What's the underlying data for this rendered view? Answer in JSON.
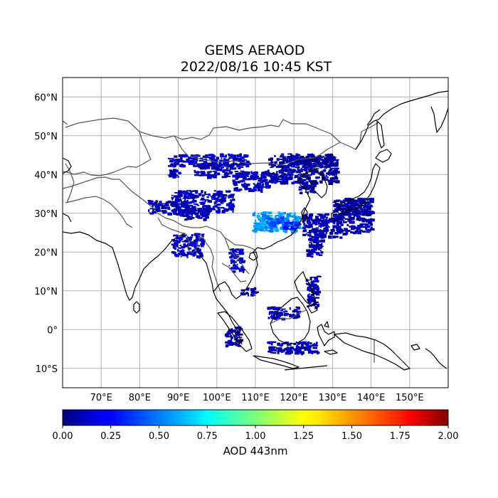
{
  "title": {
    "line1": "GEMS AERAOD",
    "line2": "2022/08/16 10:45 KST"
  },
  "map": {
    "lon_range": [
      60,
      160
    ],
    "lat_range": [
      -15,
      65
    ],
    "lon_gridlines": [
      70,
      80,
      90,
      100,
      110,
      120,
      130,
      140,
      150
    ],
    "lat_gridlines": [
      60,
      50,
      40,
      30,
      20,
      10,
      0,
      -10
    ],
    "lon_labels": [
      "70°E",
      "80°E",
      "90°E",
      "100°E",
      "110°E",
      "120°E",
      "130°E",
      "140°E",
      "150°E"
    ],
    "lat_labels": [
      "60°N",
      "50°N",
      "40°N",
      "30°N",
      "20°N",
      "10°N",
      "0°",
      "10°S"
    ],
    "grid": true,
    "coastline_color": "#000000",
    "border_color": "#555555",
    "grid_color": "#b0b0b0"
  },
  "aod_regions": [
    {
      "lon": [
        87,
        90
      ],
      "lat": [
        39.5,
        45
      ],
      "value": 0.1
    },
    {
      "lon": [
        90,
        108
      ],
      "lat": [
        42.5,
        45.5
      ],
      "value": 0.15
    },
    {
      "lon": [
        94,
        106
      ],
      "lat": [
        39.5,
        43
      ],
      "value": 0.1
    },
    {
      "lon": [
        104,
        113
      ],
      "lat": [
        36,
        41
      ],
      "value": 0.12
    },
    {
      "lon": [
        113,
        131
      ],
      "lat": [
        38,
        45
      ],
      "value": 0.08
    },
    {
      "lon": [
        116,
        130
      ],
      "lat": [
        42.5,
        45.5
      ],
      "value": 0.05
    },
    {
      "lon": [
        121,
        125
      ],
      "lat": [
        35.5,
        38.5
      ],
      "value": 0.1
    },
    {
      "lon": [
        88,
        104
      ],
      "lat": [
        30.5,
        36
      ],
      "value": 0.12
    },
    {
      "lon": [
        82,
        90
      ],
      "lat": [
        30,
        33.5
      ],
      "value": 0.1
    },
    {
      "lon": [
        90,
        98
      ],
      "lat": [
        28.5,
        31.5
      ],
      "value": 0.1
    },
    {
      "lon": [
        109,
        121
      ],
      "lat": [
        25.5,
        30.5
      ],
      "value": 0.55
    },
    {
      "lon": [
        112,
        118
      ],
      "lat": [
        27,
        29
      ],
      "value": 0.4
    },
    {
      "lon": [
        117,
        121
      ],
      "lat": [
        26,
        28
      ],
      "value": 0.3
    },
    {
      "lon": [
        122,
        132
      ],
      "lat": [
        24,
        30
      ],
      "value": 0.1
    },
    {
      "lon": [
        130,
        140
      ],
      "lat": [
        25,
        34
      ],
      "value": 0.08
    },
    {
      "lon": [
        133,
        140
      ],
      "lat": [
        30,
        34
      ],
      "value": 0.05
    },
    {
      "lon": [
        123,
        127
      ],
      "lat": [
        19,
        25
      ],
      "value": 0.1
    },
    {
      "lon": [
        103,
        107
      ],
      "lat": [
        15,
        21
      ],
      "value": 0.15
    },
    {
      "lon": [
        106,
        110
      ],
      "lat": [
        9,
        11
      ],
      "value": 0.1
    },
    {
      "lon": [
        123,
        126
      ],
      "lat": [
        6,
        14
      ],
      "value": 0.1
    },
    {
      "lon": [
        113,
        121
      ],
      "lat": [
        3,
        6
      ],
      "value": 0.1
    },
    {
      "lon": [
        102,
        106
      ],
      "lat": [
        -4,
        1
      ],
      "value": 0.08
    },
    {
      "lon": [
        113,
        126
      ],
      "lat": [
        -6,
        -3
      ],
      "value": 0.1
    },
    {
      "lon": [
        88,
        96
      ],
      "lat": [
        19,
        25
      ],
      "value": 0.15
    }
  ],
  "colorbar": {
    "min": 0.0,
    "max": 2.0,
    "ticks": [
      "0.00",
      "0.25",
      "0.50",
      "0.75",
      "1.00",
      "1.25",
      "1.50",
      "1.75",
      "2.00"
    ],
    "label": "AOD 443nm",
    "colormap": "jet"
  }
}
